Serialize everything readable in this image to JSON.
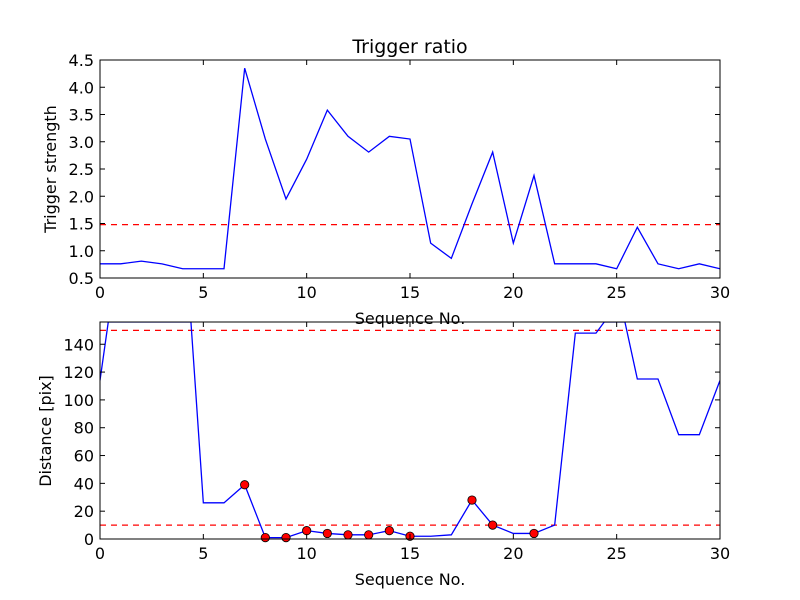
{
  "chart_data": [
    {
      "type": "line",
      "title": "Trigger ratio",
      "xlabel": "Sequence No.",
      "ylabel": "Trigger strength",
      "xlim": [
        0,
        30
      ],
      "ylim": [
        0.5,
        4.5
      ],
      "xticks": [
        0,
        5,
        10,
        15,
        20,
        25,
        30
      ],
      "yticks": [
        0.5,
        1.0,
        1.5,
        2.0,
        2.5,
        3.0,
        3.5,
        4.0,
        4.5
      ],
      "ytick_labels": [
        "0.5",
        "1.0",
        "1.5",
        "2.0",
        "2.5",
        "3.0",
        "3.5",
        "4.0",
        "4.5"
      ],
      "series": [
        {
          "color": "#0000ff",
          "style": "solid",
          "x": [
            0,
            1,
            2,
            3,
            4,
            5,
            6,
            7,
            8,
            9,
            10,
            11,
            12,
            13,
            14,
            15,
            16,
            17,
            18,
            19,
            20,
            21,
            22,
            23,
            24,
            25,
            26,
            27,
            28,
            29,
            30
          ],
          "y": [
            0.76,
            0.76,
            0.81,
            0.76,
            0.67,
            0.67,
            0.67,
            4.35,
            3.05,
            1.95,
            2.68,
            3.58,
            3.1,
            2.81,
            3.1,
            3.05,
            1.14,
            0.86,
            1.86,
            2.81,
            1.14,
            2.38,
            0.76,
            0.76,
            0.76,
            0.67,
            1.43,
            0.76,
            0.67,
            0.76,
            0.67
          ]
        }
      ],
      "threshold_lines": [
        {
          "y": 1.48,
          "color": "#ff0000",
          "style": "dashed"
        }
      ],
      "grid": false
    },
    {
      "type": "line",
      "title": "",
      "xlabel": "Sequence No.",
      "ylabel": "Distance [pix]",
      "xlim": [
        0,
        30
      ],
      "ylim": [
        0,
        156
      ],
      "xticks": [
        0,
        5,
        10,
        15,
        20,
        25,
        30
      ],
      "yticks": [
        0,
        20,
        40,
        60,
        80,
        100,
        120,
        140
      ],
      "ytick_labels": [
        "0",
        "20",
        "40",
        "60",
        "80",
        "100",
        "120",
        "140"
      ],
      "series": [
        {
          "color": "#0000ff",
          "style": "solid",
          "x": [
            0,
            0.4,
            4.4,
            5,
            6,
            7,
            8,
            9,
            10,
            11,
            12,
            13,
            14,
            15,
            16,
            17,
            18,
            19,
            20,
            21,
            22,
            23,
            24,
            24.4,
            25.4,
            26,
            27,
            28,
            29,
            30
          ],
          "y": [
            114,
            156,
            156,
            26,
            26,
            39,
            1,
            1,
            6,
            4,
            3,
            3,
            6,
            2,
            2,
            3,
            28,
            10,
            4,
            4,
            10,
            148,
            148,
            156,
            156,
            115,
            115,
            75,
            75,
            114
          ]
        }
      ],
      "markers": {
        "color": "#ff0000",
        "x": [
          7,
          8,
          9,
          10,
          11,
          12,
          13,
          14,
          15,
          18,
          19,
          21
        ],
        "y": [
          39,
          1,
          1,
          6,
          4,
          3,
          3,
          6,
          2,
          28,
          10,
          4
        ]
      },
      "threshold_lines": [
        {
          "y": 150,
          "color": "#ff0000",
          "style": "dashed"
        },
        {
          "y": 10,
          "color": "#ff0000",
          "style": "dashed"
        }
      ],
      "grid": false
    }
  ]
}
